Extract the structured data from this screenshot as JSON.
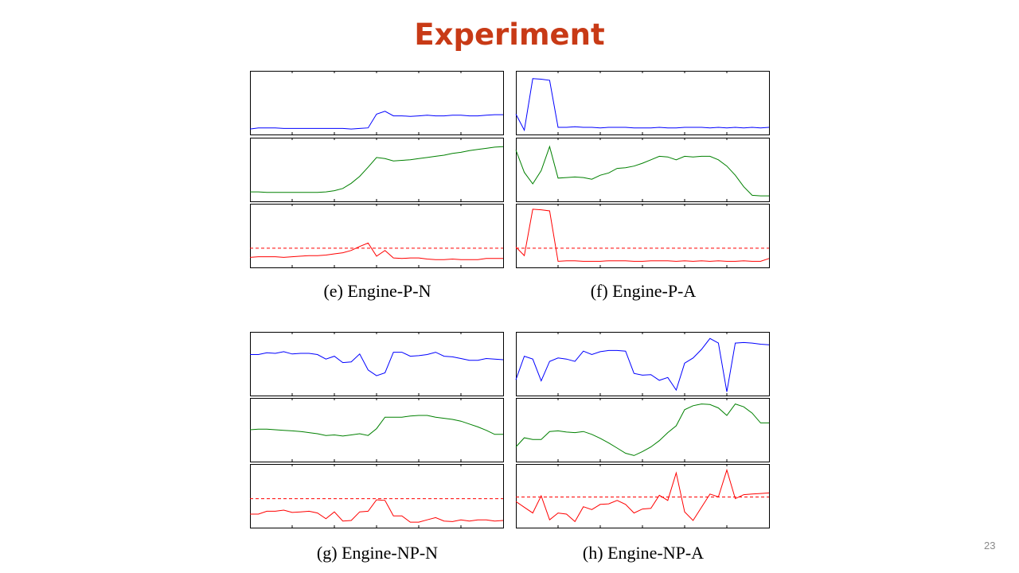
{
  "slide": {
    "title": "Experiment",
    "page_number": "23"
  },
  "chart_data": [
    {
      "type": "line",
      "caption": "(e) Engine-P-N",
      "x": [
        0,
        1,
        2,
        3,
        4,
        5,
        6,
        7,
        8,
        9,
        10,
        11,
        12,
        13,
        14,
        15,
        16,
        17,
        18,
        19,
        20,
        21,
        22,
        23,
        24,
        25,
        26,
        27,
        28,
        29,
        30
      ],
      "series": [
        {
          "color": "#0000ff",
          "values": [
            0.04,
            0.06,
            0.06,
            0.06,
            0.05,
            0.05,
            0.05,
            0.05,
            0.05,
            0.05,
            0.05,
            0.05,
            0.04,
            0.05,
            0.06,
            0.3,
            0.35,
            0.27,
            0.27,
            0.26,
            0.27,
            0.28,
            0.27,
            0.27,
            0.28,
            0.28,
            0.27,
            0.27,
            0.28,
            0.29,
            0.29
          ]
        },
        {
          "color": "#008000",
          "values": [
            0.11,
            0.11,
            0.1,
            0.1,
            0.1,
            0.1,
            0.1,
            0.1,
            0.1,
            0.11,
            0.13,
            0.17,
            0.26,
            0.38,
            0.54,
            0.71,
            0.69,
            0.65,
            0.66,
            0.67,
            0.69,
            0.71,
            0.73,
            0.75,
            0.78,
            0.8,
            0.83,
            0.85,
            0.87,
            0.89,
            0.9
          ]
        },
        {
          "color": "#ff0000",
          "values": [
            0.12,
            0.13,
            0.13,
            0.13,
            0.12,
            0.13,
            0.14,
            0.15,
            0.15,
            0.16,
            0.18,
            0.2,
            0.24,
            0.31,
            0.37,
            0.14,
            0.24,
            0.11,
            0.1,
            0.11,
            0.11,
            0.09,
            0.08,
            0.08,
            0.09,
            0.08,
            0.08,
            0.08,
            0.1,
            0.1,
            0.1
          ]
        }
      ],
      "threshold": 0.28
    },
    {
      "type": "line",
      "caption": "(f) Engine-P-A",
      "x": [
        0,
        1,
        2,
        3,
        4,
        5,
        6,
        7,
        8,
        9,
        10,
        11,
        12,
        13,
        14,
        15,
        16,
        17,
        18,
        19,
        20,
        21,
        22,
        23,
        24,
        25,
        26,
        27,
        28,
        29,
        30
      ],
      "series": [
        {
          "color": "#0000ff",
          "values": [
            0.3,
            0.02,
            0.92,
            0.91,
            0.89,
            0.07,
            0.07,
            0.08,
            0.07,
            0.07,
            0.06,
            0.07,
            0.07,
            0.07,
            0.06,
            0.06,
            0.06,
            0.07,
            0.06,
            0.06,
            0.07,
            0.07,
            0.07,
            0.06,
            0.07,
            0.06,
            0.07,
            0.06,
            0.07,
            0.06,
            0.07
          ]
        },
        {
          "color": "#008000",
          "values": [
            0.84,
            0.45,
            0.25,
            0.48,
            0.9,
            0.35,
            0.36,
            0.37,
            0.36,
            0.33,
            0.4,
            0.44,
            0.52,
            0.53,
            0.56,
            0.61,
            0.67,
            0.73,
            0.72,
            0.67,
            0.73,
            0.72,
            0.73,
            0.73,
            0.67,
            0.56,
            0.4,
            0.2,
            0.05,
            0.04,
            0.04
          ]
        },
        {
          "color": "#ff0000",
          "values": [
            0.3,
            0.15,
            0.96,
            0.95,
            0.93,
            0.05,
            0.06,
            0.06,
            0.05,
            0.05,
            0.05,
            0.06,
            0.06,
            0.06,
            0.05,
            0.05,
            0.06,
            0.06,
            0.06,
            0.05,
            0.06,
            0.05,
            0.06,
            0.05,
            0.06,
            0.05,
            0.05,
            0.06,
            0.05,
            0.05,
            0.1
          ]
        }
      ],
      "threshold": 0.28
    },
    {
      "type": "line",
      "caption": "(g) Engine-NP-N",
      "x": [
        0,
        1,
        2,
        3,
        4,
        5,
        6,
        7,
        8,
        9,
        10,
        11,
        12,
        13,
        14,
        15,
        16,
        17,
        18,
        19,
        20,
        21,
        22,
        23,
        24,
        25,
        26,
        27,
        28,
        29,
        30
      ],
      "series": [
        {
          "color": "#0000ff",
          "values": [
            0.66,
            0.66,
            0.69,
            0.68,
            0.71,
            0.67,
            0.68,
            0.68,
            0.66,
            0.58,
            0.63,
            0.52,
            0.53,
            0.67,
            0.39,
            0.29,
            0.34,
            0.7,
            0.7,
            0.63,
            0.64,
            0.66,
            0.7,
            0.63,
            0.62,
            0.59,
            0.56,
            0.56,
            0.59,
            0.58,
            0.57
          ]
        },
        {
          "color": "#008000",
          "values": [
            0.5,
            0.51,
            0.51,
            0.5,
            0.49,
            0.48,
            0.47,
            0.45,
            0.43,
            0.4,
            0.41,
            0.39,
            0.41,
            0.43,
            0.4,
            0.52,
            0.72,
            0.72,
            0.72,
            0.74,
            0.75,
            0.75,
            0.72,
            0.7,
            0.68,
            0.65,
            0.6,
            0.55,
            0.49,
            0.42,
            0.42
          ]
        },
        {
          "color": "#ff0000",
          "values": [
            0.18,
            0.18,
            0.23,
            0.23,
            0.25,
            0.21,
            0.22,
            0.23,
            0.2,
            0.1,
            0.22,
            0.06,
            0.07,
            0.22,
            0.23,
            0.43,
            0.42,
            0.15,
            0.15,
            0.04,
            0.04,
            0.08,
            0.12,
            0.06,
            0.05,
            0.08,
            0.06,
            0.08,
            0.08,
            0.06,
            0.07
          ]
        }
      ],
      "threshold": 0.45
    },
    {
      "type": "line",
      "caption": "(h) Engine-NP-A",
      "x": [
        0,
        1,
        2,
        3,
        4,
        5,
        6,
        7,
        8,
        9,
        10,
        11,
        12,
        13,
        14,
        15,
        16,
        17,
        18,
        19,
        20,
        21,
        22,
        23,
        24,
        25,
        26,
        27,
        28,
        29,
        30
      ],
      "series": [
        {
          "color": "#0000ff",
          "values": [
            0.22,
            0.63,
            0.58,
            0.2,
            0.54,
            0.6,
            0.58,
            0.54,
            0.72,
            0.66,
            0.71,
            0.73,
            0.73,
            0.72,
            0.33,
            0.3,
            0.31,
            0.21,
            0.26,
            0.04,
            0.51,
            0.6,
            0.75,
            0.94,
            0.86,
            0.01,
            0.86,
            0.87,
            0.86,
            0.84,
            0.83
          ]
        },
        {
          "color": "#008000",
          "values": [
            0.2,
            0.36,
            0.33,
            0.33,
            0.47,
            0.48,
            0.46,
            0.45,
            0.47,
            0.42,
            0.35,
            0.27,
            0.18,
            0.09,
            0.05,
            0.12,
            0.2,
            0.31,
            0.45,
            0.57,
            0.85,
            0.92,
            0.95,
            0.94,
            0.88,
            0.75,
            0.95,
            0.9,
            0.79,
            0.62,
            0.62
          ]
        },
        {
          "color": "#ff0000",
          "values": [
            0.4,
            0.3,
            0.2,
            0.5,
            0.08,
            0.2,
            0.18,
            0.05,
            0.31,
            0.26,
            0.35,
            0.36,
            0.42,
            0.35,
            0.2,
            0.27,
            0.28,
            0.51,
            0.42,
            0.9,
            0.22,
            0.07,
            0.3,
            0.53,
            0.48,
            0.95,
            0.45,
            0.52,
            0.53,
            0.54,
            0.55
          ]
        }
      ],
      "threshold": 0.48
    }
  ]
}
